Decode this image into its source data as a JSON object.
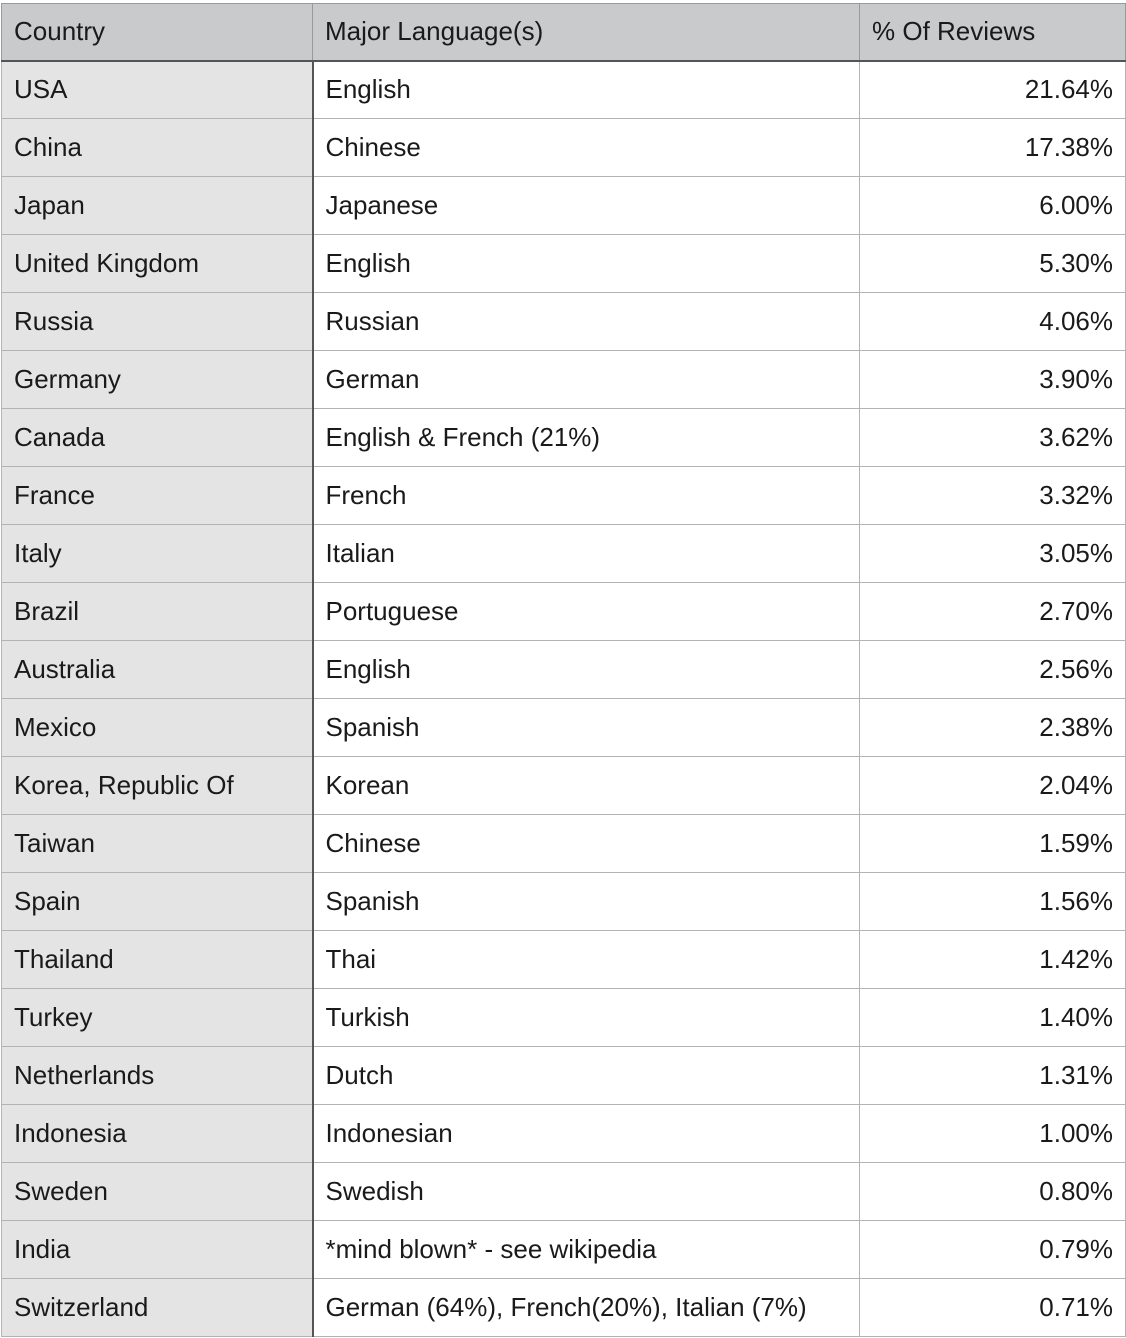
{
  "table": {
    "columns": [
      "Country",
      "Major Language(s)",
      "% Of Reviews"
    ],
    "rows": [
      {
        "country": "USA",
        "language": "English",
        "percent": "21.64%"
      },
      {
        "country": "China",
        "language": "Chinese",
        "percent": "17.38%"
      },
      {
        "country": "Japan",
        "language": "Japanese",
        "percent": "6.00%"
      },
      {
        "country": "United Kingdom",
        "language": "English",
        "percent": "5.30%"
      },
      {
        "country": "Russia",
        "language": "Russian",
        "percent": "4.06%"
      },
      {
        "country": "Germany",
        "language": "German",
        "percent": "3.90%"
      },
      {
        "country": "Canada",
        "language": "English & French (21%)",
        "percent": "3.62%"
      },
      {
        "country": "France",
        "language": "French",
        "percent": "3.32%"
      },
      {
        "country": "Italy",
        "language": "Italian",
        "percent": "3.05%"
      },
      {
        "country": "Brazil",
        "language": "Portuguese",
        "percent": "2.70%"
      },
      {
        "country": "Australia",
        "language": "English",
        "percent": "2.56%"
      },
      {
        "country": "Mexico",
        "language": "Spanish",
        "percent": "2.38%"
      },
      {
        "country": "Korea, Republic Of",
        "language": "Korean",
        "percent": "2.04%"
      },
      {
        "country": "Taiwan",
        "language": "Chinese",
        "percent": "1.59%"
      },
      {
        "country": "Spain",
        "language": "Spanish",
        "percent": "1.56%"
      },
      {
        "country": "Thailand",
        "language": "Thai",
        "percent": "1.42%"
      },
      {
        "country": "Turkey",
        "language": "Turkish",
        "percent": "1.40%"
      },
      {
        "country": "Netherlands",
        "language": "Dutch",
        "percent": "1.31%"
      },
      {
        "country": "Indonesia",
        "language": "Indonesian",
        "percent": "1.00%"
      },
      {
        "country": "Sweden",
        "language": "Swedish",
        "percent": "0.80%"
      },
      {
        "country": "India",
        "language": "*mind blown* - see wikipedia",
        "percent": "0.79%"
      },
      {
        "country": "Switzerland",
        "language": "German (64%), French(20%), Italian (7%)",
        "percent": "0.71%"
      }
    ]
  },
  "colors": {
    "header_bg": "#c9cacb",
    "first_column_bg": "#e4e4e4",
    "cell_bg": "#ffffff",
    "grid_line": "#b3b3b3",
    "header_rule": "#555555"
  }
}
